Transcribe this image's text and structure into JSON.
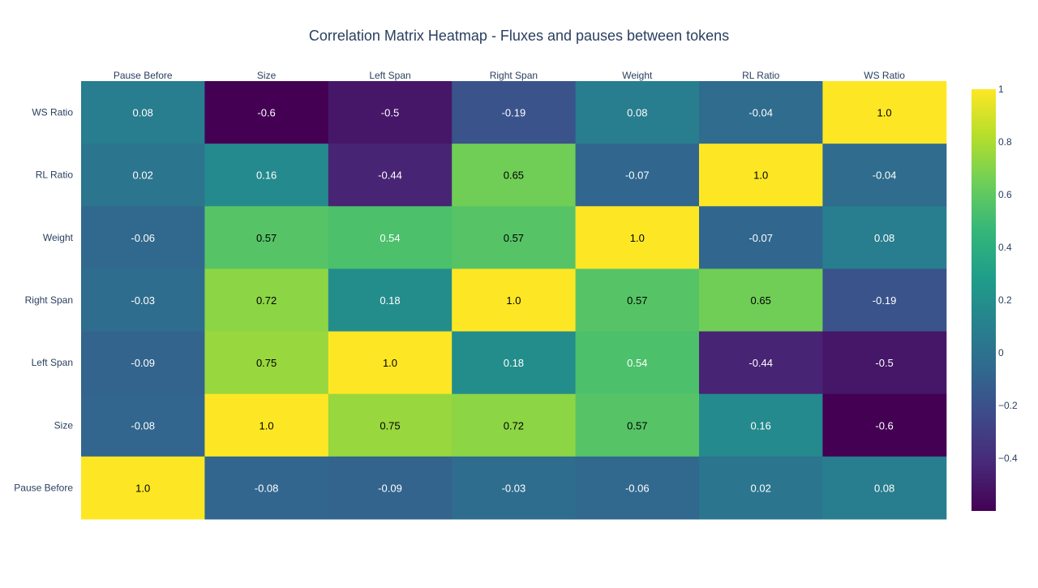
{
  "chart_data": {
    "type": "heatmap",
    "title": "Correlation Matrix Heatmap - Fluxes and pauses between tokens",
    "x_categories": [
      "Pause Before",
      "Size",
      "Left Span",
      "Right Span",
      "Weight",
      "RL Ratio",
      "WS Ratio"
    ],
    "y_categories": [
      "WS Ratio",
      "RL Ratio",
      "Weight",
      "Right Span",
      "Left Span",
      "Size",
      "Pause Before"
    ],
    "z": [
      [
        0.08,
        -0.6,
        -0.5,
        -0.19,
        0.08,
        -0.04,
        1.0
      ],
      [
        0.02,
        0.16,
        -0.44,
        0.65,
        -0.07,
        1.0,
        -0.04
      ],
      [
        -0.06,
        0.57,
        0.54,
        0.57,
        1.0,
        -0.07,
        0.08
      ],
      [
        -0.03,
        0.72,
        0.18,
        1.0,
        0.57,
        0.65,
        -0.19
      ],
      [
        -0.09,
        0.75,
        1.0,
        0.18,
        0.54,
        -0.44,
        -0.5
      ],
      [
        -0.08,
        1.0,
        0.75,
        0.72,
        0.57,
        0.16,
        -0.6
      ],
      [
        1.0,
        -0.08,
        -0.09,
        -0.03,
        -0.06,
        0.02,
        0.08
      ]
    ],
    "text": [
      [
        "0.08",
        "-0.6",
        "-0.5",
        "-0.19",
        "0.08",
        "-0.04",
        "1.0"
      ],
      [
        "0.02",
        "0.16",
        "-0.44",
        "0.65",
        "-0.07",
        "1.0",
        "-0.04"
      ],
      [
        "-0.06",
        "0.57",
        "0.54",
        "0.57",
        "1.0",
        "-0.07",
        "0.08"
      ],
      [
        "-0.03",
        "0.72",
        "0.18",
        "1.0",
        "0.57",
        "0.65",
        "-0.19"
      ],
      [
        "-0.09",
        "0.75",
        "1.0",
        "0.18",
        "0.54",
        "-0.44",
        "-0.5"
      ],
      [
        "-0.08",
        "1.0",
        "0.75",
        "0.72",
        "0.57",
        "0.16",
        "-0.6"
      ],
      [
        "1.0",
        "-0.08",
        "-0.09",
        "-0.03",
        "-0.06",
        "0.02",
        "0.08"
      ]
    ],
    "colorscale": "viridis",
    "colorbar": {
      "zmin": -0.6,
      "zmax": 1.0,
      "ticks": [
        1,
        0.8,
        0.6,
        0.4,
        0.2,
        0,
        -0.2,
        -0.4
      ],
      "tick_labels": [
        "1",
        "0.8",
        "0.6",
        "0.4",
        "0.2",
        "0",
        "−0.2",
        "−0.4"
      ]
    },
    "x_axis_position": "top",
    "legend": "none",
    "grid": false
  }
}
